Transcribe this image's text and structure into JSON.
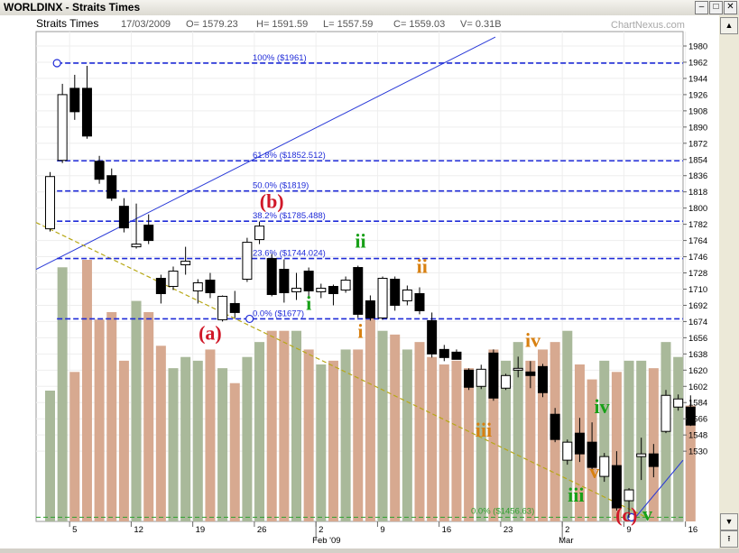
{
  "window": {
    "title": "WORLDINX - Straits Times",
    "min": "–",
    "max": "□",
    "close": "✕"
  },
  "info": {
    "name": "Straits Times",
    "date": "17/03/2009",
    "open": "O= 1579.23",
    "high": "H= 1591.59",
    "low": "L= 1557.59",
    "close": "C= 1559.03",
    "volume": "V= 0.31B",
    "brand": "ChartNexus.com"
  },
  "scrollbar": {
    "up": "▲",
    "down": "▼",
    "top": "⭱"
  },
  "chart_data": {
    "type": "candlestick",
    "ylim": [
      1456,
      1980
    ],
    "y_ticks": [
      1530,
      1548,
      1566,
      1584,
      1602,
      1620,
      1638,
      1656,
      1674,
      1692,
      1710,
      1728,
      1746,
      1764,
      1782,
      1800,
      1818,
      1836,
      1854,
      1872,
      1890,
      1908,
      1926,
      1944,
      1962,
      1980
    ],
    "x_ticks": [
      {
        "i": 1,
        "label": "5"
      },
      {
        "i": 6,
        "label": "12"
      },
      {
        "i": 11,
        "label": "19"
      },
      {
        "i": 16,
        "label": "26"
      },
      {
        "i": 21,
        "label": "2"
      },
      {
        "i": 26,
        "label": "9"
      },
      {
        "i": 31,
        "label": "16"
      },
      {
        "i": 36,
        "label": "23"
      },
      {
        "i": 41,
        "label": "2"
      },
      {
        "i": 46,
        "label": "9"
      },
      {
        "i": 51,
        "label": "16"
      }
    ],
    "month_labels": [
      {
        "i": 21,
        "label": "Feb '09"
      },
      {
        "i": 41,
        "label": "Mar"
      }
    ],
    "candles": [
      {
        "o": 1777,
        "h": 1840,
        "l": 1774,
        "c": 1835,
        "v": 0.35
      },
      {
        "o": 1853,
        "h": 1938,
        "l": 1850,
        "c": 1926,
        "v": 0.68
      },
      {
        "o": 1933,
        "h": 1948,
        "l": 1898,
        "c": 1907,
        "v": 0.4
      },
      {
        "o": 1933,
        "h": 1958,
        "l": 1877,
        "c": 1880,
        "v": 0.7
      },
      {
        "o": 1852,
        "h": 1858,
        "l": 1827,
        "c": 1832,
        "v": 0.54
      },
      {
        "o": 1836,
        "h": 1844,
        "l": 1808,
        "c": 1811,
        "v": 0.56
      },
      {
        "o": 1802,
        "h": 1811,
        "l": 1773,
        "c": 1778,
        "v": 0.43
      },
      {
        "o": 1757,
        "h": 1805,
        "l": 1755,
        "c": 1760,
        "v": 0.59
      },
      {
        "o": 1781,
        "h": 1793,
        "l": 1760,
        "c": 1764,
        "v": 0.56
      },
      {
        "o": 1722,
        "h": 1726,
        "l": 1694,
        "c": 1705,
        "v": 0.47
      },
      {
        "o": 1713,
        "h": 1735,
        "l": 1709,
        "c": 1730,
        "v": 0.41
      },
      {
        "o": 1737,
        "h": 1757,
        "l": 1726,
        "c": 1741,
        "v": 0.44
      },
      {
        "o": 1708,
        "h": 1721,
        "l": 1694,
        "c": 1717,
        "v": 0.43
      },
      {
        "o": 1720,
        "h": 1728,
        "l": 1700,
        "c": 1706,
        "v": 0.46
      },
      {
        "o": 1676,
        "h": 1703,
        "l": 1674,
        "c": 1702,
        "v": 0.41
      },
      {
        "o": 1694,
        "h": 1708,
        "l": 1678,
        "c": 1684,
        "v": 0.37
      },
      {
        "o": 1721,
        "h": 1767,
        "l": 1718,
        "c": 1762,
        "v": 0.44
      },
      {
        "o": 1765,
        "h": 1785,
        "l": 1760,
        "c": 1780,
        "v": 0.48
      },
      {
        "o": 1744,
        "h": 1749,
        "l": 1702,
        "c": 1704,
        "v": 0.51
      },
      {
        "o": 1732,
        "h": 1743,
        "l": 1695,
        "c": 1706,
        "v": 0.51
      },
      {
        "o": 1707,
        "h": 1728,
        "l": 1698,
        "c": 1711,
        "v": 0.51
      },
      {
        "o": 1730,
        "h": 1734,
        "l": 1700,
        "c": 1708,
        "v": 0.46
      },
      {
        "o": 1707,
        "h": 1716,
        "l": 1700,
        "c": 1711,
        "v": 0.42
      },
      {
        "o": 1713,
        "h": 1715,
        "l": 1692,
        "c": 1705,
        "v": 0.43
      },
      {
        "o": 1709,
        "h": 1724,
        "l": 1706,
        "c": 1720,
        "v": 0.46
      },
      {
        "o": 1734,
        "h": 1736,
        "l": 1678,
        "c": 1682,
        "v": 0.46
      },
      {
        "o": 1697,
        "h": 1703,
        "l": 1675,
        "c": 1678,
        "v": 0.58
      },
      {
        "o": 1678,
        "h": 1724,
        "l": 1676,
        "c": 1722,
        "v": 0.51
      },
      {
        "o": 1721,
        "h": 1724,
        "l": 1686,
        "c": 1692,
        "v": 0.5
      },
      {
        "o": 1697,
        "h": 1714,
        "l": 1692,
        "c": 1709,
        "v": 0.46
      },
      {
        "o": 1705,
        "h": 1712,
        "l": 1682,
        "c": 1686,
        "v": 0.48
      },
      {
        "o": 1675,
        "h": 1684,
        "l": 1634,
        "c": 1638,
        "v": 0.44
      },
      {
        "o": 1643,
        "h": 1648,
        "l": 1630,
        "c": 1634,
        "v": 0.42
      },
      {
        "o": 1640,
        "h": 1643,
        "l": 1632,
        "c": 1632,
        "v": 0.43
      },
      {
        "o": 1620,
        "h": 1622,
        "l": 1598,
        "c": 1601,
        "v": 0.41
      },
      {
        "o": 1602,
        "h": 1626,
        "l": 1599,
        "c": 1621,
        "v": 0.4
      },
      {
        "o": 1639,
        "h": 1643,
        "l": 1586,
        "c": 1589,
        "v": 0.46
      },
      {
        "o": 1600,
        "h": 1616,
        "l": 1598,
        "c": 1614,
        "v": 0.43
      },
      {
        "o": 1620,
        "h": 1635,
        "l": 1612,
        "c": 1622,
        "v": 0.48
      },
      {
        "o": 1618,
        "h": 1630,
        "l": 1600,
        "c": 1614,
        "v": 0.43
      },
      {
        "o": 1624,
        "h": 1627,
        "l": 1590,
        "c": 1595,
        "v": 0.46
      },
      {
        "o": 1571,
        "h": 1578,
        "l": 1540,
        "c": 1543,
        "v": 0.48
      },
      {
        "o": 1520,
        "h": 1543,
        "l": 1515,
        "c": 1540,
        "v": 0.51
      },
      {
        "o": 1550,
        "h": 1567,
        "l": 1518,
        "c": 1527,
        "v": 0.42
      },
      {
        "o": 1540,
        "h": 1562,
        "l": 1508,
        "c": 1512,
        "v": 0.38
      },
      {
        "o": 1502,
        "h": 1528,
        "l": 1496,
        "c": 1524,
        "v": 0.43
      },
      {
        "o": 1514,
        "h": 1530,
        "l": 1464,
        "c": 1467,
        "v": 0.4
      },
      {
        "o": 1475,
        "h": 1489,
        "l": 1456,
        "c": 1487,
        "v": 0.43
      },
      {
        "o": 1524,
        "h": 1545,
        "l": 1498,
        "c": 1527,
        "v": 0.43
      },
      {
        "o": 1527,
        "h": 1538,
        "l": 1501,
        "c": 1513,
        "v": 0.41
      },
      {
        "o": 1552,
        "h": 1598,
        "l": 1550,
        "c": 1592,
        "v": 0.48
      },
      {
        "o": 1579,
        "h": 1593,
        "l": 1575,
        "c": 1588,
        "v": 0.44
      },
      {
        "o": 1579,
        "h": 1592,
        "l": 1558,
        "c": 1559,
        "v": 0.31
      }
    ],
    "volume_max": 0.7,
    "fib_levels": [
      {
        "value": 1961,
        "label": "100%  ($1961)"
      },
      {
        "value": 1852.512,
        "label": "61.8%  ($1852.512)"
      },
      {
        "value": 1819,
        "label": "50.0%  ($1819)"
      },
      {
        "value": 1785.488,
        "label": "38.2%  ($1785.488)"
      },
      {
        "value": 1744.024,
        "label": "23.6%  ($1744.024)"
      },
      {
        "value": 1677,
        "label": "0.0%  ($1677)"
      }
    ],
    "support": {
      "value": 1456.63,
      "label": "0.0%  ($1456.63)"
    },
    "wave_labels": [
      {
        "text": "(a)",
        "i": 13,
        "y": 1654,
        "color": "#d01828",
        "size": 22
      },
      {
        "text": "(b)",
        "i": 18,
        "y": 1800,
        "color": "#d01828",
        "size": 22
      },
      {
        "text": "(c)",
        "i": 46.8,
        "y": 1452,
        "color": "#d01828",
        "size": 22
      },
      {
        "text": "ii",
        "i": 25.2,
        "y": 1756,
        "color": "#18a018",
        "size": 22
      },
      {
        "text": "i",
        "i": 21,
        "y": 1687,
        "color": "#18a018",
        "size": 22
      },
      {
        "text": "i",
        "i": 25.2,
        "y": 1656,
        "color": "#d88010",
        "size": 22
      },
      {
        "text": "ii",
        "i": 30.2,
        "y": 1728,
        "color": "#d88010",
        "size": 22
      },
      {
        "text": "iii",
        "i": 35.2,
        "y": 1546,
        "color": "#d88010",
        "size": 22
      },
      {
        "text": "iv",
        "i": 39.2,
        "y": 1646,
        "color": "#d88010",
        "size": 22
      },
      {
        "text": "v",
        "i": 44.2,
        "y": 1500,
        "color": "#d88010",
        "size": 22
      },
      {
        "text": "iii",
        "i": 42.7,
        "y": 1474,
        "color": "#18a018",
        "size": 22
      },
      {
        "text": "iv",
        "i": 44.8,
        "y": 1572,
        "color": "#18a018",
        "size": 22
      },
      {
        "text": "v",
        "i": 48.5,
        "y": 1453,
        "color": "#18a018",
        "size": 22
      }
    ]
  }
}
